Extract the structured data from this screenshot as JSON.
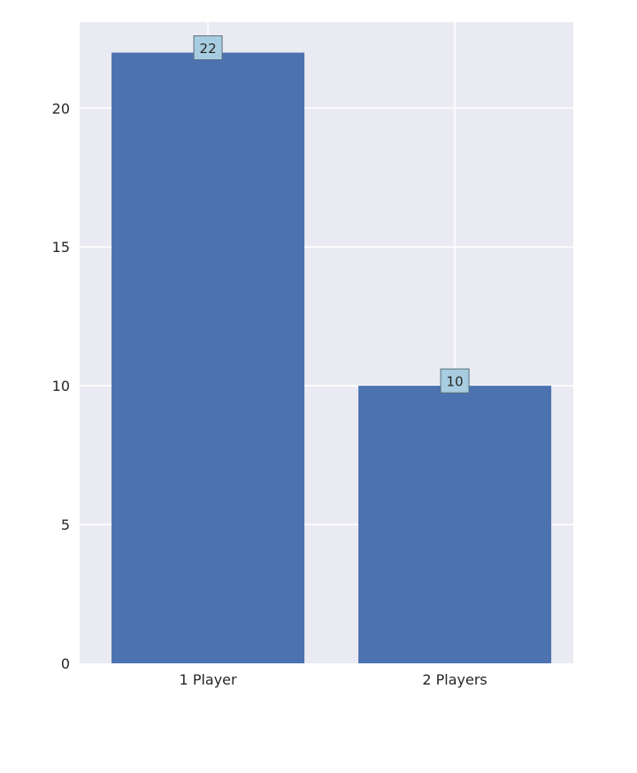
{
  "chart_data": {
    "type": "bar",
    "title": "",
    "xlabel": "",
    "ylabel": "",
    "categories": [
      "1 Player",
      "2 Players"
    ],
    "values": [
      22,
      10
    ],
    "data_labels": [
      "22",
      "10"
    ],
    "ylim": [
      0,
      23.1
    ],
    "yticks": [
      0,
      5,
      10,
      15,
      20
    ],
    "ytick_labels": [
      "0",
      "5",
      "10",
      "15",
      "20"
    ],
    "grid": true,
    "legend": "none"
  },
  "colors": {
    "plot_background": "#eaeaf2",
    "grid": "#ffffff",
    "bar": "#4c72b0",
    "label_box": "#a8cde0",
    "label_box_border": "#5a6f80",
    "text": "#262626"
  }
}
